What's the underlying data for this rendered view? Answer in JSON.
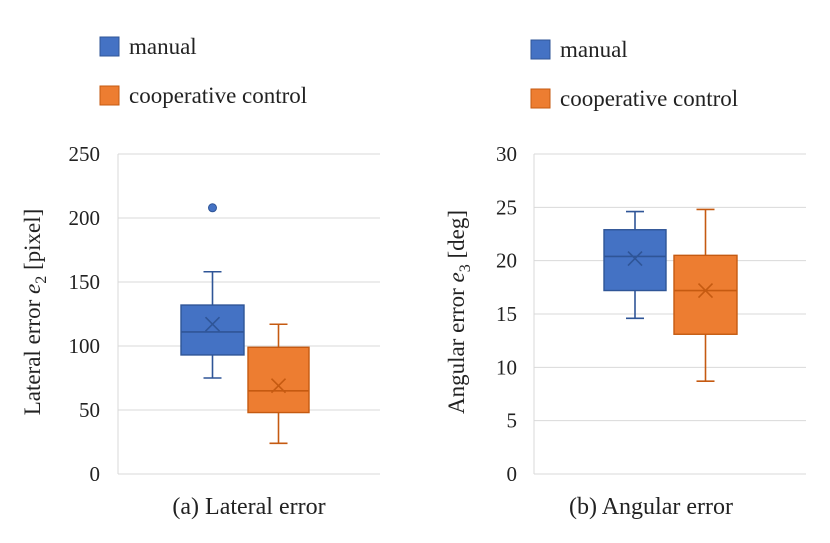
{
  "colors": {
    "manual": "#4472C4",
    "manual_edge": "#2F5597",
    "coop": "#ED7D31",
    "coop_edge": "#C55A11",
    "grid": "#D9D9D9"
  },
  "chart_data": [
    {
      "type": "box",
      "caption": "(a) Lateral error",
      "ylabel_prefix": "Lateral error ",
      "ylabel_var": "e",
      "ylabel_sub": "2",
      "ylabel_unit": " [pixel]",
      "ylim": [
        0,
        250
      ],
      "yticks": [
        "0",
        "50",
        "100",
        "150",
        "200",
        "250"
      ],
      "legend": [
        "manual",
        "cooperative control"
      ],
      "series": [
        {
          "name": "manual",
          "min": 75,
          "q1": 93,
          "median": 111,
          "q3": 132,
          "max": 158,
          "mean": 117,
          "outliers": [
            208
          ]
        },
        {
          "name": "cooperative control",
          "min": 24,
          "q1": 48,
          "median": 65,
          "q3": 99,
          "max": 117,
          "mean": 69,
          "outliers": []
        }
      ]
    },
    {
      "type": "box",
      "caption": "(b) Angular error",
      "ylabel_prefix": "Angular error ",
      "ylabel_var": "e",
      "ylabel_sub": "3",
      "ylabel_unit": " [deg]",
      "ylim": [
        0,
        30
      ],
      "yticks": [
        "0",
        "5",
        "10",
        "15",
        "20",
        "25",
        "30"
      ],
      "legend": [
        "manual",
        "cooperative control"
      ],
      "series": [
        {
          "name": "manual",
          "min": 14.6,
          "q1": 17.2,
          "median": 20.4,
          "q3": 22.9,
          "max": 24.6,
          "mean": 20.2,
          "outliers": []
        },
        {
          "name": "cooperative control",
          "min": 8.7,
          "q1": 13.1,
          "median": 17.2,
          "q3": 20.5,
          "max": 24.8,
          "mean": 17.2,
          "outliers": []
        }
      ]
    }
  ]
}
